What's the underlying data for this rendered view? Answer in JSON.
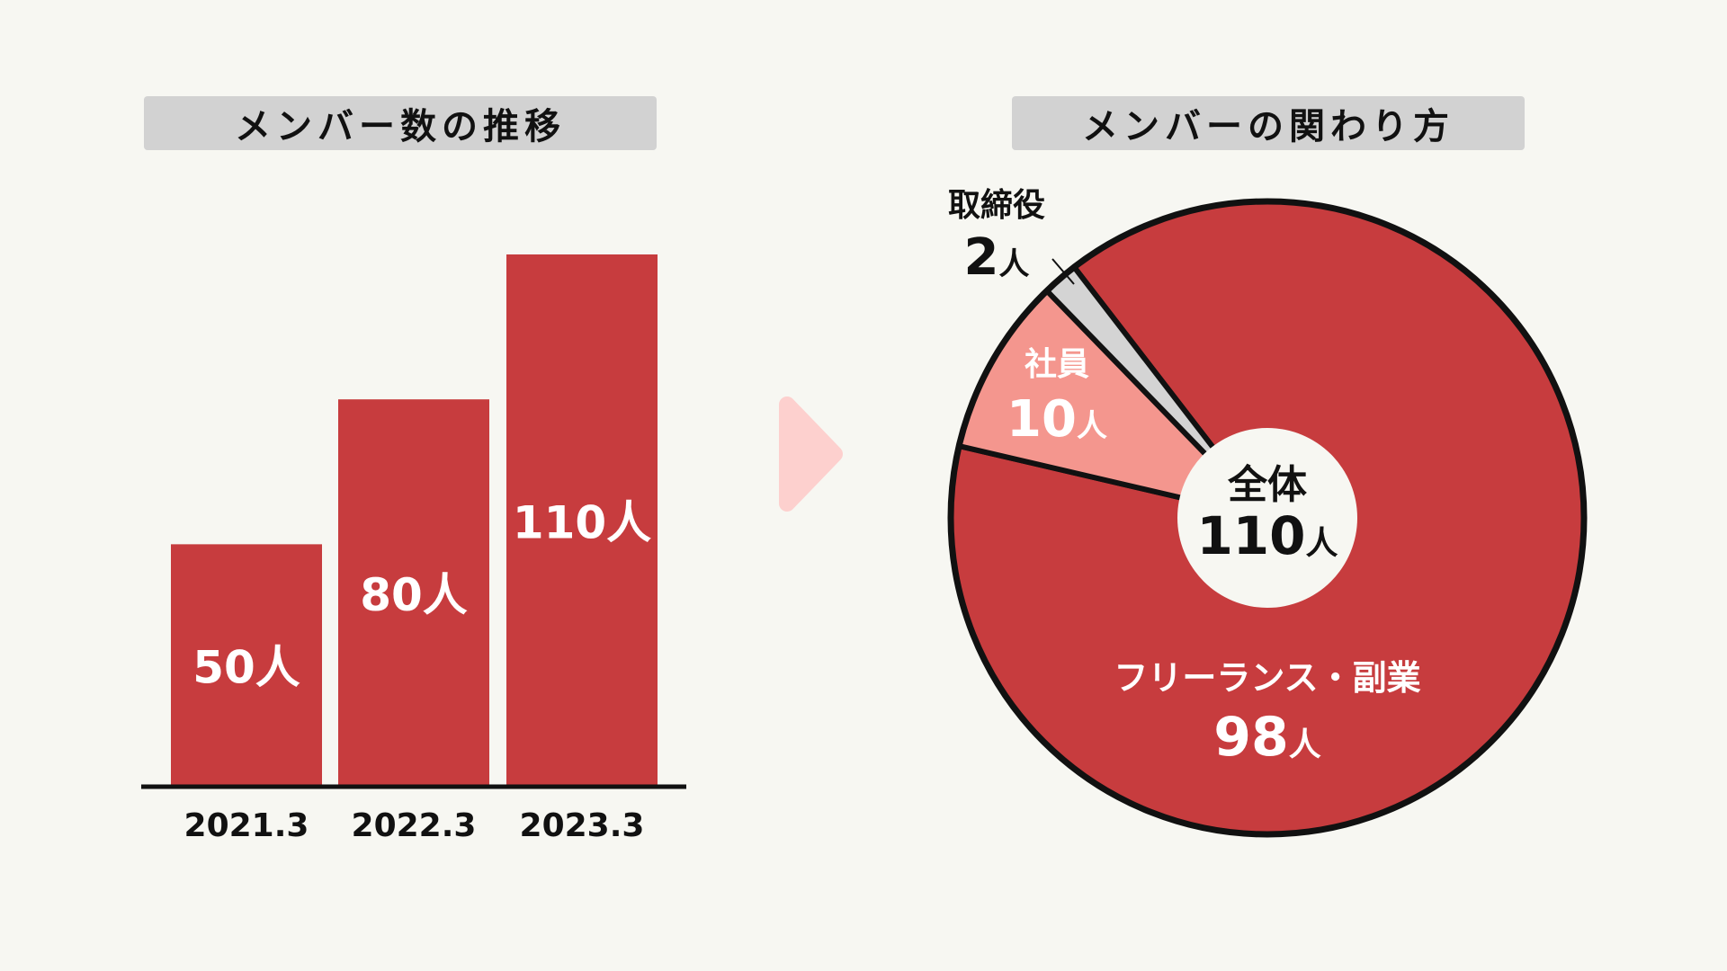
{
  "chart_data": [
    {
      "type": "bar",
      "title": "メンバー数の推移",
      "categories": [
        "2021.3",
        "2022.3",
        "2023.3"
      ],
      "values": [
        50,
        80,
        110
      ],
      "value_labels": [
        "50人",
        "80人",
        "110人"
      ],
      "ylim": [
        0,
        110
      ],
      "color": "#c73c3e",
      "grid": false
    },
    {
      "type": "pie",
      "title": "メンバーの関わり方",
      "center_label": "全体",
      "center_value": "110",
      "unit": "人",
      "total": 110,
      "slices": [
        {
          "name": "フリーランス・副業",
          "value": 98,
          "value_label": "98",
          "color": "#c73c3e"
        },
        {
          "name": "社員",
          "value": 10,
          "value_label": "10",
          "color": "#f4968e"
        },
        {
          "name": "取締役",
          "value": 2,
          "value_label": "2",
          "color": "#d4d4d4"
        }
      ]
    }
  ],
  "arrow_color": "#fdd0ce"
}
